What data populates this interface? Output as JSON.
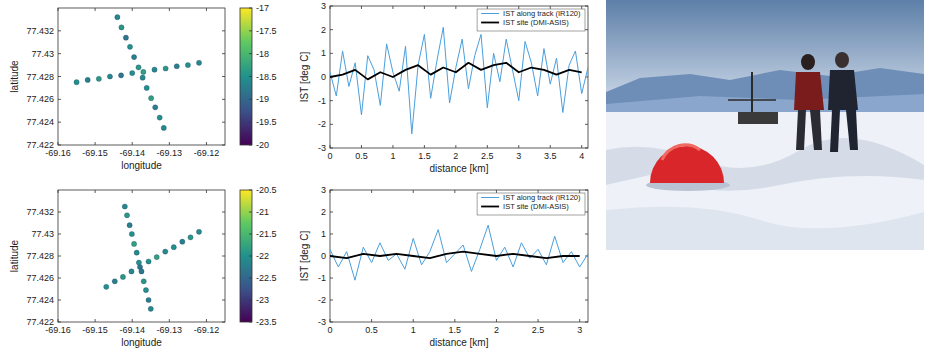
{
  "chart_data": [
    {
      "type": "scatter",
      "xlabel": "longitude",
      "ylabel": "latitude",
      "xlim": [
        -69.16,
        -69.115
      ],
      "ylim": [
        77.422,
        77.434
      ],
      "xticks": [
        -69.16,
        -69.15,
        -69.14,
        -69.13,
        -69.12
      ],
      "yticks": [
        77.422,
        77.424,
        77.426,
        77.428,
        77.43,
        77.432
      ],
      "grid": false,
      "colorbar": {
        "lim": [
          -20,
          -17
        ],
        "ticks": [
          -20,
          -19.5,
          -19,
          -18.5,
          -18,
          -17.5,
          -17
        ]
      },
      "series": [
        {
          "x": [
            -69.155,
            -69.152,
            -69.149,
            -69.146,
            -69.143,
            -69.14,
            -69.137,
            -69.134,
            -69.131,
            -69.128,
            -69.125,
            -69.122,
            -69.144,
            -69.1429,
            -69.1417,
            -69.1406,
            -69.1395,
            -69.1383,
            -69.1372,
            -69.1361,
            -69.1349,
            -69.1338,
            -69.1326,
            -69.1315
          ],
          "y": [
            77.4275,
            77.4277,
            77.4278,
            77.428,
            77.4281,
            77.4283,
            77.4284,
            77.4286,
            77.4287,
            77.4289,
            77.429,
            77.4292,
            77.4332,
            77.4323,
            77.4314,
            77.4306,
            77.4297,
            77.4288,
            77.4279,
            77.427,
            77.4261,
            77.4253,
            77.4244,
            77.4235
          ],
          "color_values": [
            -18.5,
            -18.7,
            -18.4,
            -18.6,
            -18.8,
            -18.5,
            -18.3,
            -18.6,
            -18.4,
            -18.7,
            -18.5,
            -18.6,
            -18.6,
            -18.4,
            -18.8,
            -18.5,
            -18.7,
            -18.4,
            -18.6,
            -18.5,
            -18.3,
            -18.7,
            -18.5,
            -18.6
          ]
        }
      ]
    },
    {
      "type": "scatter",
      "xlabel": "longitude",
      "ylabel": "latitude",
      "xlim": [
        -69.16,
        -69.115
      ],
      "ylim": [
        77.422,
        77.434
      ],
      "xticks": [
        -69.16,
        -69.15,
        -69.14,
        -69.13,
        -69.12
      ],
      "yticks": [
        77.422,
        77.424,
        77.426,
        77.428,
        77.43,
        77.432
      ],
      "grid": false,
      "colorbar": {
        "lim": [
          -23.5,
          -20.5
        ],
        "ticks": [
          -23.5,
          -23,
          -22.5,
          -22,
          -21.5,
          -21,
          -20.5
        ]
      },
      "series": [
        {
          "x": [
            -69.147,
            -69.1447,
            -69.1425,
            -69.1402,
            -69.1379,
            -69.1356,
            -69.1334,
            -69.1311,
            -69.1288,
            -69.1265,
            -69.1243,
            -69.122,
            -69.142,
            -69.1414,
            -69.1407,
            -69.1401,
            -69.1395,
            -69.1388,
            -69.1382,
            -69.1375,
            -69.1369,
            -69.1363,
            -69.1356,
            -69.135
          ],
          "y": [
            77.4252,
            77.4257,
            77.4261,
            77.4266,
            77.427,
            77.4275,
            77.4279,
            77.4284,
            77.4288,
            77.4293,
            77.4297,
            77.4302,
            77.4325,
            77.4317,
            77.4308,
            77.43,
            77.4291,
            77.4283,
            77.4274,
            77.4266,
            77.4257,
            77.4249,
            77.424,
            77.4232
          ],
          "color_values": [
            -22.0,
            -22.2,
            -21.9,
            -22.1,
            -22.3,
            -22.0,
            -21.8,
            -22.1,
            -22.0,
            -22.2,
            -21.9,
            -22.1,
            -22.1,
            -21.9,
            -22.2,
            -22.0,
            -21.8,
            -22.1,
            -22.0,
            -22.3,
            -21.9,
            -22.0,
            -22.2,
            -22.1
          ]
        }
      ]
    },
    {
      "type": "line",
      "xlabel": "distance [km]",
      "ylabel": "IST [deg C]",
      "xlim": [
        0,
        4.1
      ],
      "ylim": [
        -3,
        3
      ],
      "xticks": [
        0,
        0.5,
        1,
        1.5,
        2,
        2.5,
        3,
        3.5,
        4
      ],
      "yticks": [
        -3,
        -2,
        -1,
        0,
        1,
        2,
        3
      ],
      "grid": false,
      "legend": "upper right",
      "series": [
        {
          "name": "IST along track (IR120)",
          "color": "#4a9fdc",
          "x": [
            0,
            0.1,
            0.2,
            0.3,
            0.4,
            0.5,
            0.6,
            0.7,
            0.8,
            0.9,
            1,
            1.1,
            1.2,
            1.3,
            1.4,
            1.5,
            1.6,
            1.7,
            1.8,
            1.9,
            2,
            2.1,
            2.2,
            2.3,
            2.4,
            2.5,
            2.6,
            2.7,
            2.8,
            2.9,
            3,
            3.1,
            3.2,
            3.3,
            3.4,
            3.5,
            3.6,
            3.7,
            3.8,
            3.9,
            4,
            4.1
          ],
          "values": [
            0.2,
            -0.8,
            1.1,
            -0.4,
            0.6,
            -1.6,
            0.9,
            0.3,
            -1.2,
            1.4,
            0.2,
            -0.6,
            1.3,
            -2.4,
            0.5,
            1.8,
            -0.9,
            0.7,
            2.1,
            -1.1,
            0.4,
            1.6,
            -0.5,
            0.9,
            1.8,
            -1.3,
            1.0,
            -0.2,
            1.6,
            0.3,
            -1.0,
            1.5,
            0.6,
            -0.8,
            1.2,
            -0.3,
            0.8,
            -1.5,
            0.5,
            1.1,
            -0.7,
            0.4
          ]
        },
        {
          "name": "IST site (DMI-ASIS)",
          "color": "#000000",
          "x": [
            0,
            0.2,
            0.4,
            0.6,
            0.8,
            1,
            1.2,
            1.4,
            1.6,
            1.8,
            2,
            2.2,
            2.4,
            2.6,
            2.8,
            3,
            3.2,
            3.4,
            3.6,
            3.8,
            4
          ],
          "values": [
            0.0,
            0.1,
            0.3,
            -0.1,
            0.2,
            0.0,
            0.3,
            0.5,
            0.1,
            0.4,
            0.2,
            0.6,
            0.3,
            0.5,
            0.6,
            0.2,
            0.4,
            0.3,
            0.1,
            0.3,
            0.2
          ]
        }
      ]
    },
    {
      "type": "line",
      "xlabel": "distance [km]",
      "ylabel": "IST [deg C]",
      "xlim": [
        0,
        3.1
      ],
      "ylim": [
        -3,
        3
      ],
      "xticks": [
        0,
        0.5,
        1,
        1.5,
        2,
        2.5,
        3
      ],
      "yticks": [
        -3,
        -2,
        -1,
        0,
        1,
        2,
        3
      ],
      "grid": false,
      "legend": "upper right",
      "series": [
        {
          "name": "IST along track (IR120)",
          "color": "#4a9fdc",
          "x": [
            0,
            0.1,
            0.2,
            0.3,
            0.4,
            0.5,
            0.6,
            0.7,
            0.8,
            0.9,
            1,
            1.1,
            1.2,
            1.3,
            1.4,
            1.5,
            1.6,
            1.7,
            1.8,
            1.9,
            2,
            2.1,
            2.2,
            2.3,
            2.4,
            2.5,
            2.6,
            2.7,
            2.8,
            2.9,
            3,
            3.1
          ],
          "values": [
            0.3,
            -0.5,
            0.2,
            -1.1,
            0.4,
            -0.3,
            0.6,
            -0.2,
            0.1,
            -0.6,
            0.8,
            -0.4,
            0.2,
            1.2,
            -0.3,
            0.1,
            0.5,
            -0.7,
            0.3,
            1.4,
            -0.2,
            0.4,
            -0.5,
            0.6,
            -0.1,
            0.3,
            -0.4,
            0.9,
            -0.3,
            0.2,
            -0.5,
            0.1
          ]
        },
        {
          "name": "IST site (DMI-ASIS)",
          "color": "#000000",
          "x": [
            0,
            0.2,
            0.4,
            0.6,
            0.8,
            1,
            1.2,
            1.4,
            1.6,
            1.8,
            2,
            2.2,
            2.4,
            2.6,
            2.8,
            3
          ],
          "values": [
            0.0,
            -0.1,
            0.1,
            0.0,
            0.1,
            0.0,
            -0.1,
            0.1,
            0.2,
            0.1,
            0.0,
            0.1,
            0.0,
            -0.1,
            0.0,
            0.0
          ]
        }
      ]
    }
  ]
}
